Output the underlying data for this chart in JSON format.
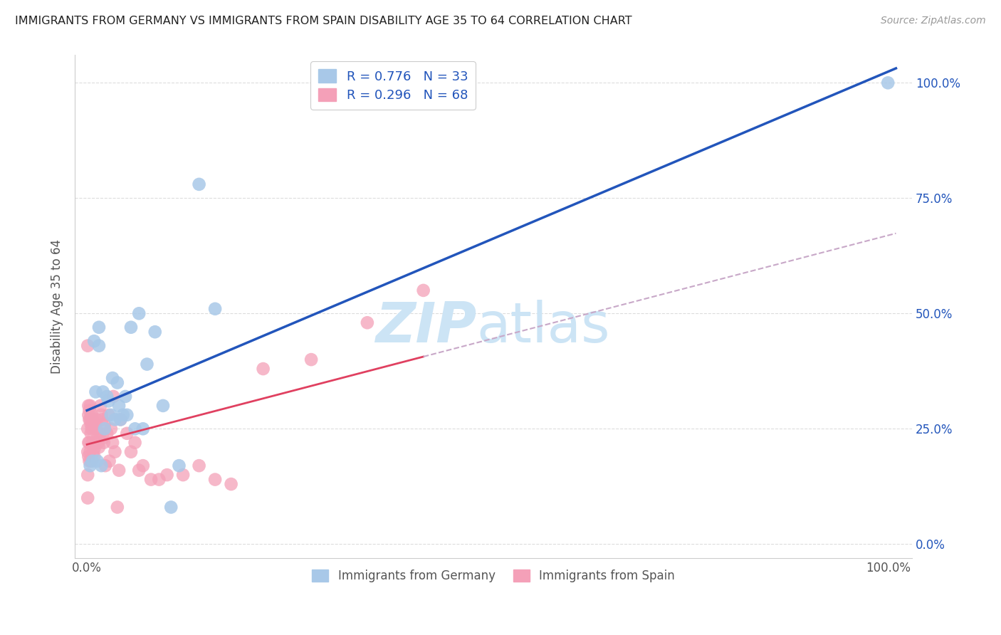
{
  "title": "IMMIGRANTS FROM GERMANY VS IMMIGRANTS FROM SPAIN DISABILITY AGE 35 TO 64 CORRELATION CHART",
  "source": "Source: ZipAtlas.com",
  "ylabel": "Disability Age 35 to 64",
  "legend_label_germany": "Immigrants from Germany",
  "legend_label_spain": "Immigrants from Spain",
  "R_germany": 0.776,
  "N_germany": 33,
  "R_spain": 0.296,
  "N_spain": 68,
  "color_germany": "#a8c8e8",
  "color_spain": "#f4a0b8",
  "line_color_germany": "#2255bb",
  "line_color_spain": "#e04060",
  "dashed_line_color": "#c8a8c8",
  "background_color": "#ffffff",
  "grid_color": "#dddddd",
  "title_color": "#222222",
  "source_color": "#999999",
  "watermark_zip": "ZIP",
  "watermark_atlas": "atlas",
  "watermark_color": "#cce4f5",
  "germany_x": [
    0.004,
    0.007,
    0.009,
    0.011,
    0.013,
    0.015,
    0.015,
    0.018,
    0.02,
    0.022,
    0.025,
    0.027,
    0.03,
    0.032,
    0.035,
    0.038,
    0.04,
    0.042,
    0.045,
    0.048,
    0.05,
    0.055,
    0.06,
    0.065,
    0.07,
    0.075,
    0.085,
    0.095,
    0.105,
    0.115,
    0.14,
    0.16,
    1.0
  ],
  "germany_y": [
    0.17,
    0.18,
    0.44,
    0.33,
    0.18,
    0.43,
    0.47,
    0.17,
    0.33,
    0.25,
    0.32,
    0.31,
    0.28,
    0.36,
    0.27,
    0.35,
    0.3,
    0.27,
    0.28,
    0.32,
    0.28,
    0.47,
    0.25,
    0.5,
    0.25,
    0.39,
    0.46,
    0.3,
    0.08,
    0.17,
    0.78,
    0.51,
    1.0
  ],
  "spain_x": [
    0.001,
    0.001,
    0.001,
    0.001,
    0.001,
    0.002,
    0.002,
    0.002,
    0.002,
    0.003,
    0.003,
    0.003,
    0.003,
    0.004,
    0.004,
    0.004,
    0.005,
    0.005,
    0.005,
    0.006,
    0.006,
    0.007,
    0.007,
    0.008,
    0.008,
    0.009,
    0.009,
    0.01,
    0.01,
    0.011,
    0.012,
    0.013,
    0.014,
    0.015,
    0.016,
    0.017,
    0.018,
    0.019,
    0.02,
    0.021,
    0.022,
    0.023,
    0.025,
    0.027,
    0.028,
    0.03,
    0.032,
    0.033,
    0.035,
    0.038,
    0.04,
    0.042,
    0.05,
    0.055,
    0.06,
    0.065,
    0.07,
    0.08,
    0.09,
    0.1,
    0.12,
    0.14,
    0.16,
    0.18,
    0.22,
    0.28,
    0.35,
    0.42
  ],
  "spain_y": [
    0.43,
    0.25,
    0.2,
    0.15,
    0.1,
    0.3,
    0.28,
    0.22,
    0.19,
    0.29,
    0.27,
    0.22,
    0.18,
    0.3,
    0.27,
    0.2,
    0.26,
    0.24,
    0.18,
    0.28,
    0.25,
    0.27,
    0.22,
    0.26,
    0.2,
    0.26,
    0.19,
    0.26,
    0.21,
    0.25,
    0.27,
    0.23,
    0.22,
    0.21,
    0.24,
    0.3,
    0.28,
    0.27,
    0.23,
    0.22,
    0.26,
    0.17,
    0.24,
    0.28,
    0.18,
    0.25,
    0.22,
    0.32,
    0.2,
    0.08,
    0.16,
    0.27,
    0.24,
    0.2,
    0.22,
    0.16,
    0.17,
    0.14,
    0.14,
    0.15,
    0.15,
    0.17,
    0.14,
    0.13,
    0.38,
    0.4,
    0.48,
    0.55
  ],
  "xlim": [
    0.0,
    1.0
  ],
  "ylim": [
    0.0,
    1.0
  ],
  "xticks": [
    0.0,
    1.0
  ],
  "xticklabels": [
    "0.0%",
    "100.0%"
  ],
  "yticks": [
    0.0,
    0.25,
    0.5,
    0.75,
    1.0
  ],
  "yticklabels": [
    "0.0%",
    "25.0%",
    "50.0%",
    "75.0%",
    "100.0%"
  ]
}
